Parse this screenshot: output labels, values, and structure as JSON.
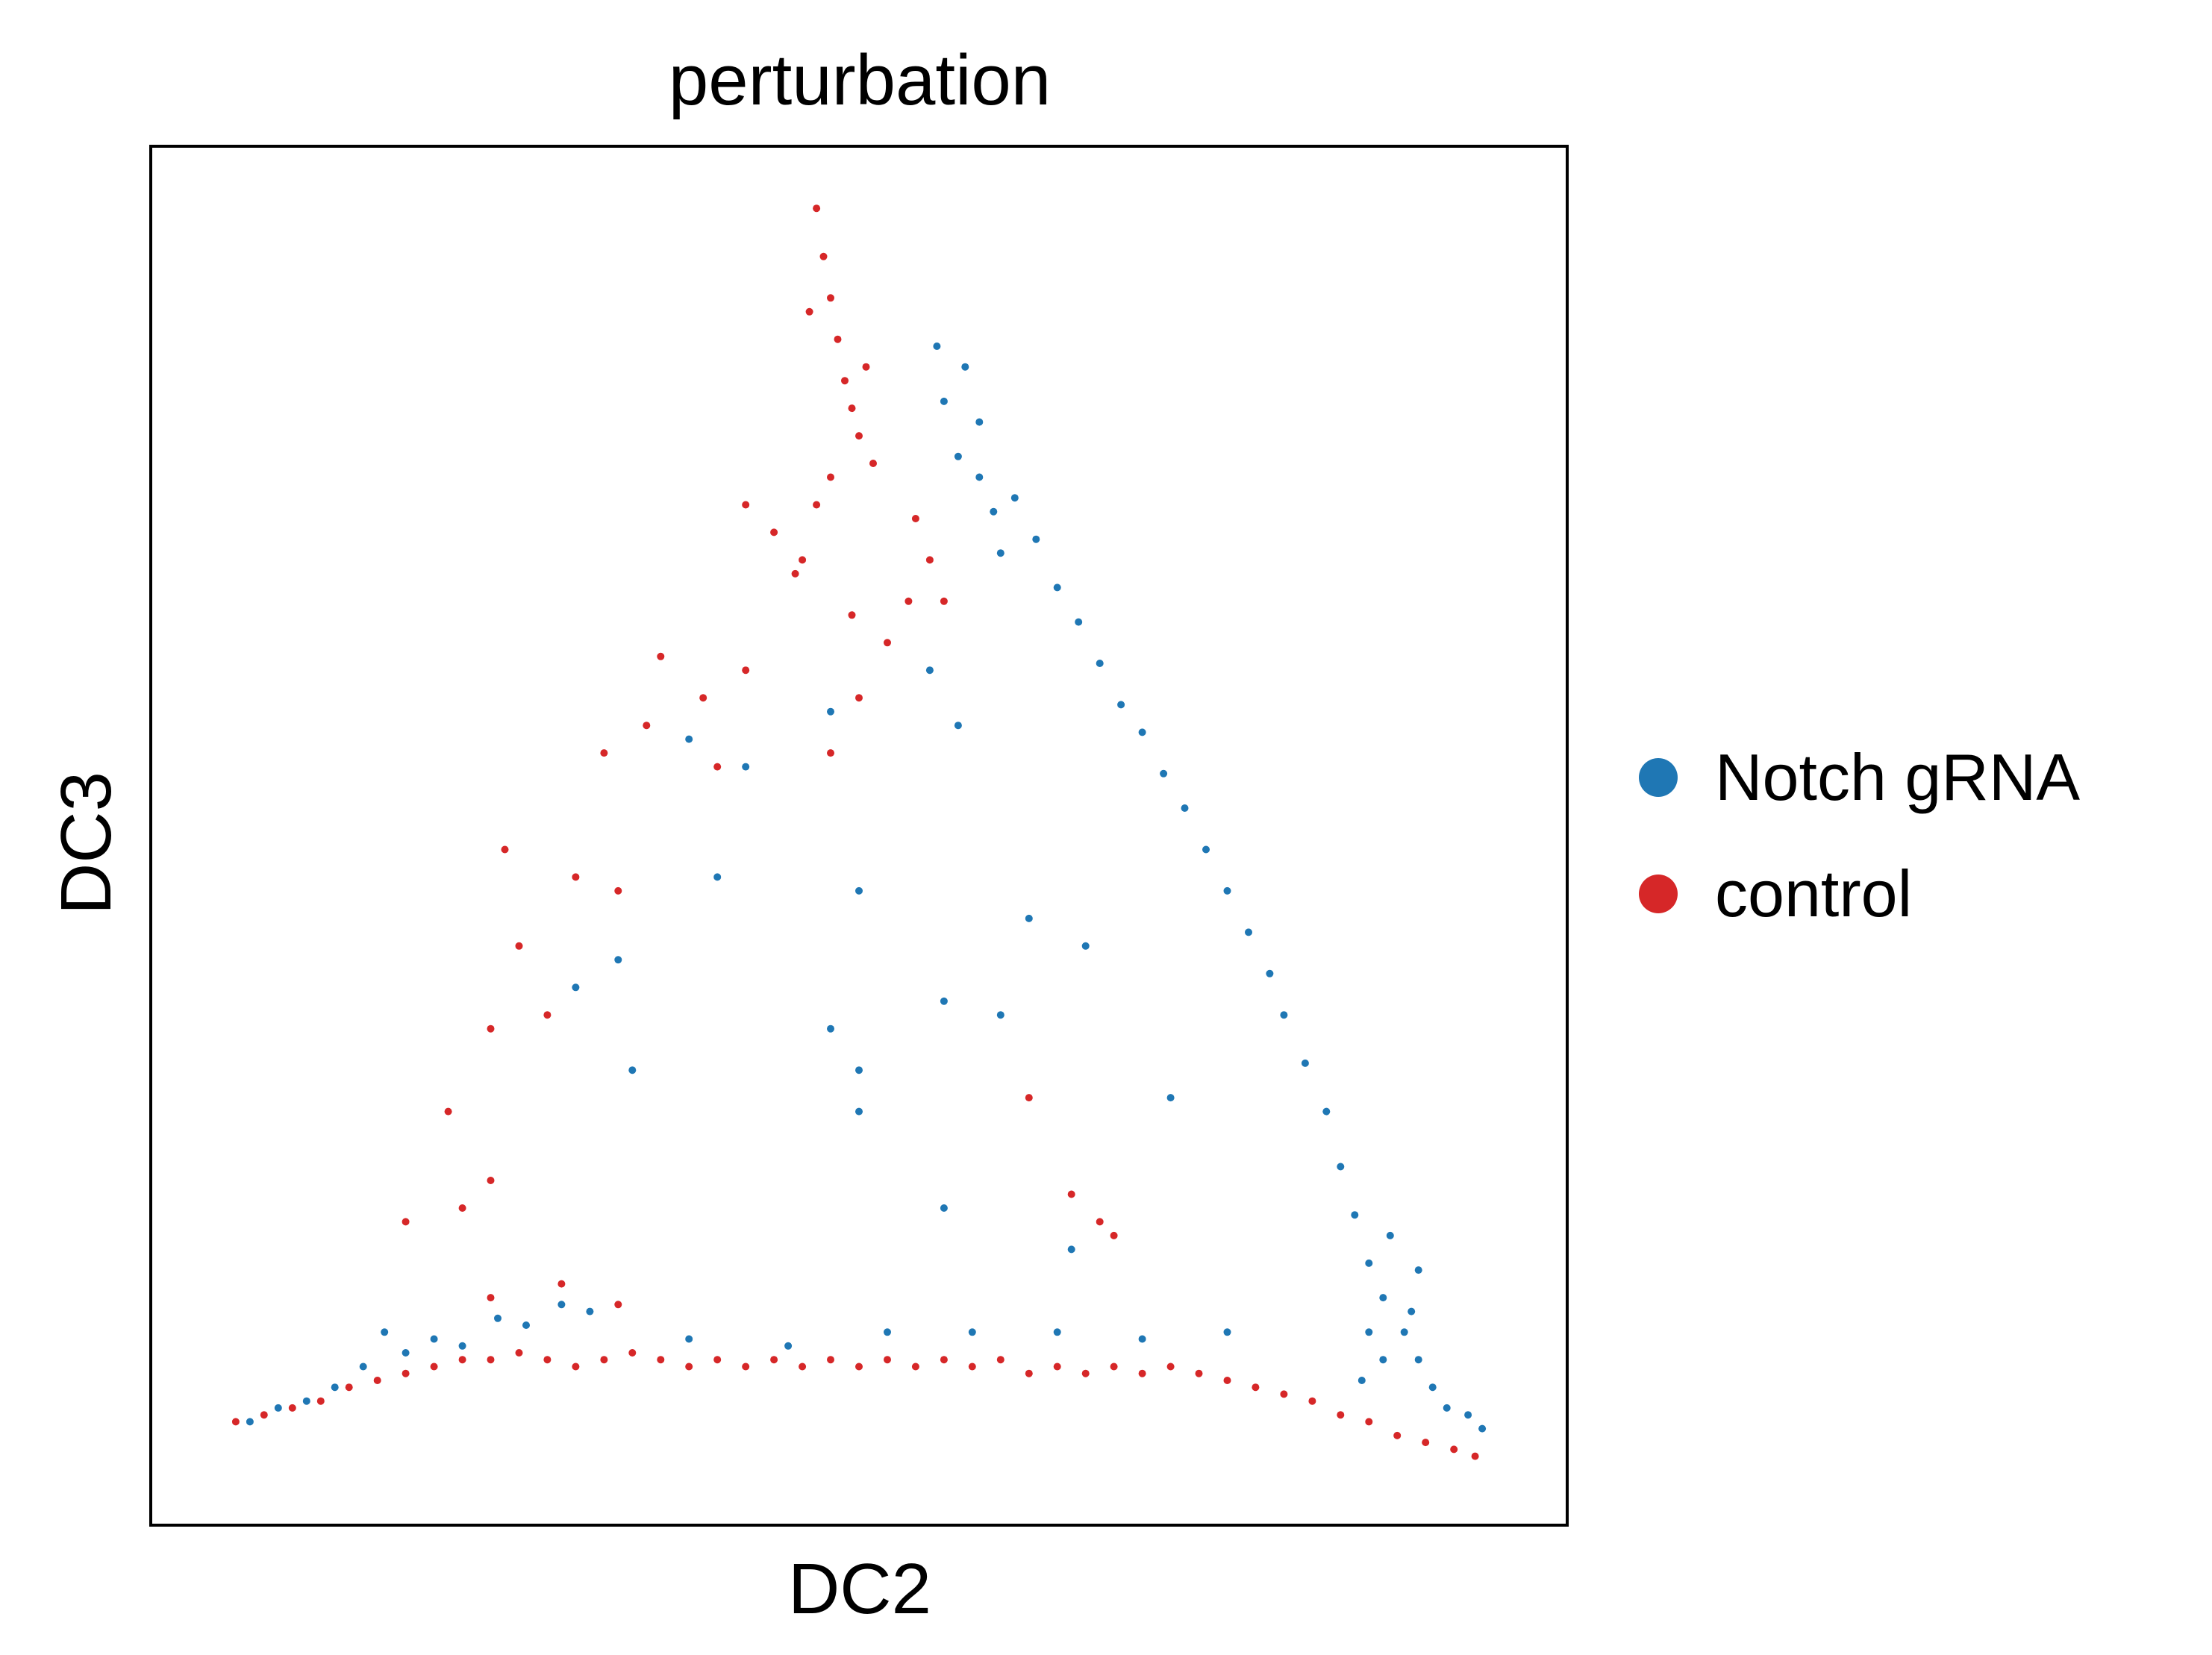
{
  "chart_data": {
    "type": "scatter",
    "title": "perturbation",
    "xlabel": "DC2",
    "ylabel": "DC3",
    "xlim": [
      0,
      1
    ],
    "ylim": [
      0,
      1
    ],
    "grid": false,
    "ticks": false,
    "legend_position": "right",
    "series": [
      {
        "name": "Notch gRNA",
        "color": "#1f77b4",
        "values": [
          {
            "x": 0.555,
            "y": 0.855
          },
          {
            "x": 0.56,
            "y": 0.815
          },
          {
            "x": 0.575,
            "y": 0.84
          },
          {
            "x": 0.585,
            "y": 0.8
          },
          {
            "x": 0.57,
            "y": 0.775
          },
          {
            "x": 0.585,
            "y": 0.76
          },
          {
            "x": 0.595,
            "y": 0.735
          },
          {
            "x": 0.6,
            "y": 0.705
          },
          {
            "x": 0.61,
            "y": 0.745
          },
          {
            "x": 0.625,
            "y": 0.715
          },
          {
            "x": 0.64,
            "y": 0.68
          },
          {
            "x": 0.655,
            "y": 0.655
          },
          {
            "x": 0.67,
            "y": 0.625
          },
          {
            "x": 0.685,
            "y": 0.595
          },
          {
            "x": 0.7,
            "y": 0.575
          },
          {
            "x": 0.715,
            "y": 0.545
          },
          {
            "x": 0.73,
            "y": 0.52
          },
          {
            "x": 0.745,
            "y": 0.49
          },
          {
            "x": 0.76,
            "y": 0.46
          },
          {
            "x": 0.775,
            "y": 0.43
          },
          {
            "x": 0.79,
            "y": 0.4
          },
          {
            "x": 0.8,
            "y": 0.37
          },
          {
            "x": 0.815,
            "y": 0.335
          },
          {
            "x": 0.83,
            "y": 0.3
          },
          {
            "x": 0.84,
            "y": 0.26
          },
          {
            "x": 0.85,
            "y": 0.225
          },
          {
            "x": 0.86,
            "y": 0.19
          },
          {
            "x": 0.87,
            "y": 0.165
          },
          {
            "x": 0.885,
            "y": 0.14
          },
          {
            "x": 0.895,
            "y": 0.12
          },
          {
            "x": 0.905,
            "y": 0.1
          },
          {
            "x": 0.915,
            "y": 0.085
          },
          {
            "x": 0.93,
            "y": 0.08
          },
          {
            "x": 0.94,
            "y": 0.07
          },
          {
            "x": 0.875,
            "y": 0.21
          },
          {
            "x": 0.895,
            "y": 0.185
          },
          {
            "x": 0.87,
            "y": 0.12
          },
          {
            "x": 0.855,
            "y": 0.105
          },
          {
            "x": 0.89,
            "y": 0.155
          },
          {
            "x": 0.86,
            "y": 0.14
          },
          {
            "x": 0.165,
            "y": 0.14
          },
          {
            "x": 0.18,
            "y": 0.125
          },
          {
            "x": 0.2,
            "y": 0.135
          },
          {
            "x": 0.22,
            "y": 0.13
          },
          {
            "x": 0.245,
            "y": 0.15
          },
          {
            "x": 0.265,
            "y": 0.145
          },
          {
            "x": 0.29,
            "y": 0.16
          },
          {
            "x": 0.31,
            "y": 0.155
          },
          {
            "x": 0.15,
            "y": 0.115
          },
          {
            "x": 0.13,
            "y": 0.1
          },
          {
            "x": 0.11,
            "y": 0.09
          },
          {
            "x": 0.09,
            "y": 0.085
          },
          {
            "x": 0.07,
            "y": 0.075
          },
          {
            "x": 0.38,
            "y": 0.135
          },
          {
            "x": 0.45,
            "y": 0.13
          },
          {
            "x": 0.52,
            "y": 0.14
          },
          {
            "x": 0.58,
            "y": 0.14
          },
          {
            "x": 0.64,
            "y": 0.14
          },
          {
            "x": 0.7,
            "y": 0.135
          },
          {
            "x": 0.76,
            "y": 0.14
          },
          {
            "x": 0.3,
            "y": 0.39
          },
          {
            "x": 0.33,
            "y": 0.41
          },
          {
            "x": 0.34,
            "y": 0.33
          },
          {
            "x": 0.4,
            "y": 0.47
          },
          {
            "x": 0.5,
            "y": 0.46
          },
          {
            "x": 0.56,
            "y": 0.38
          },
          {
            "x": 0.6,
            "y": 0.37
          },
          {
            "x": 0.5,
            "y": 0.33
          },
          {
            "x": 0.48,
            "y": 0.36
          },
          {
            "x": 0.57,
            "y": 0.58
          },
          {
            "x": 0.55,
            "y": 0.62
          },
          {
            "x": 0.48,
            "y": 0.59
          },
          {
            "x": 0.42,
            "y": 0.55
          },
          {
            "x": 0.38,
            "y": 0.57
          },
          {
            "x": 0.5,
            "y": 0.3
          },
          {
            "x": 0.56,
            "y": 0.23
          },
          {
            "x": 0.72,
            "y": 0.31
          },
          {
            "x": 0.65,
            "y": 0.2
          },
          {
            "x": 0.62,
            "y": 0.44
          },
          {
            "x": 0.66,
            "y": 0.42
          }
        ]
      },
      {
        "name": "control",
        "color": "#d62728",
        "values": [
          {
            "x": 0.47,
            "y": 0.955
          },
          {
            "x": 0.475,
            "y": 0.92
          },
          {
            "x": 0.48,
            "y": 0.89
          },
          {
            "x": 0.485,
            "y": 0.86
          },
          {
            "x": 0.49,
            "y": 0.83
          },
          {
            "x": 0.495,
            "y": 0.81
          },
          {
            "x": 0.5,
            "y": 0.79
          },
          {
            "x": 0.465,
            "y": 0.88
          },
          {
            "x": 0.505,
            "y": 0.84
          },
          {
            "x": 0.51,
            "y": 0.77
          },
          {
            "x": 0.48,
            "y": 0.76
          },
          {
            "x": 0.47,
            "y": 0.74
          },
          {
            "x": 0.455,
            "y": 0.69
          },
          {
            "x": 0.44,
            "y": 0.72
          },
          {
            "x": 0.42,
            "y": 0.74
          },
          {
            "x": 0.54,
            "y": 0.73
          },
          {
            "x": 0.55,
            "y": 0.7
          },
          {
            "x": 0.56,
            "y": 0.67
          },
          {
            "x": 0.535,
            "y": 0.67
          },
          {
            "x": 0.52,
            "y": 0.64
          },
          {
            "x": 0.495,
            "y": 0.66
          },
          {
            "x": 0.46,
            "y": 0.7
          },
          {
            "x": 0.42,
            "y": 0.62
          },
          {
            "x": 0.39,
            "y": 0.6
          },
          {
            "x": 0.36,
            "y": 0.63
          },
          {
            "x": 0.35,
            "y": 0.58
          },
          {
            "x": 0.5,
            "y": 0.6
          },
          {
            "x": 0.48,
            "y": 0.56
          },
          {
            "x": 0.4,
            "y": 0.55
          },
          {
            "x": 0.32,
            "y": 0.56
          },
          {
            "x": 0.3,
            "y": 0.47
          },
          {
            "x": 0.33,
            "y": 0.46
          },
          {
            "x": 0.25,
            "y": 0.49
          },
          {
            "x": 0.26,
            "y": 0.42
          },
          {
            "x": 0.24,
            "y": 0.36
          },
          {
            "x": 0.28,
            "y": 0.37
          },
          {
            "x": 0.21,
            "y": 0.3
          },
          {
            "x": 0.24,
            "y": 0.25
          },
          {
            "x": 0.22,
            "y": 0.23
          },
          {
            "x": 0.18,
            "y": 0.22
          },
          {
            "x": 0.65,
            "y": 0.24
          },
          {
            "x": 0.67,
            "y": 0.22
          },
          {
            "x": 0.68,
            "y": 0.21
          },
          {
            "x": 0.62,
            "y": 0.31
          },
          {
            "x": 0.06,
            "y": 0.075
          },
          {
            "x": 0.08,
            "y": 0.08
          },
          {
            "x": 0.1,
            "y": 0.085
          },
          {
            "x": 0.12,
            "y": 0.09
          },
          {
            "x": 0.14,
            "y": 0.1
          },
          {
            "x": 0.16,
            "y": 0.105
          },
          {
            "x": 0.18,
            "y": 0.11
          },
          {
            "x": 0.2,
            "y": 0.115
          },
          {
            "x": 0.22,
            "y": 0.12
          },
          {
            "x": 0.24,
            "y": 0.12
          },
          {
            "x": 0.26,
            "y": 0.125
          },
          {
            "x": 0.28,
            "y": 0.12
          },
          {
            "x": 0.3,
            "y": 0.115
          },
          {
            "x": 0.32,
            "y": 0.12
          },
          {
            "x": 0.34,
            "y": 0.125
          },
          {
            "x": 0.36,
            "y": 0.12
          },
          {
            "x": 0.38,
            "y": 0.115
          },
          {
            "x": 0.4,
            "y": 0.12
          },
          {
            "x": 0.42,
            "y": 0.115
          },
          {
            "x": 0.44,
            "y": 0.12
          },
          {
            "x": 0.46,
            "y": 0.115
          },
          {
            "x": 0.48,
            "y": 0.12
          },
          {
            "x": 0.5,
            "y": 0.115
          },
          {
            "x": 0.52,
            "y": 0.12
          },
          {
            "x": 0.54,
            "y": 0.115
          },
          {
            "x": 0.56,
            "y": 0.12
          },
          {
            "x": 0.58,
            "y": 0.115
          },
          {
            "x": 0.6,
            "y": 0.12
          },
          {
            "x": 0.62,
            "y": 0.11
          },
          {
            "x": 0.64,
            "y": 0.115
          },
          {
            "x": 0.66,
            "y": 0.11
          },
          {
            "x": 0.68,
            "y": 0.115
          },
          {
            "x": 0.7,
            "y": 0.11
          },
          {
            "x": 0.72,
            "y": 0.115
          },
          {
            "x": 0.74,
            "y": 0.11
          },
          {
            "x": 0.76,
            "y": 0.105
          },
          {
            "x": 0.78,
            "y": 0.1
          },
          {
            "x": 0.8,
            "y": 0.095
          },
          {
            "x": 0.82,
            "y": 0.09
          },
          {
            "x": 0.84,
            "y": 0.08
          },
          {
            "x": 0.86,
            "y": 0.075
          },
          {
            "x": 0.88,
            "y": 0.065
          },
          {
            "x": 0.9,
            "y": 0.06
          },
          {
            "x": 0.92,
            "y": 0.055
          },
          {
            "x": 0.935,
            "y": 0.05
          },
          {
            "x": 0.29,
            "y": 0.175
          },
          {
            "x": 0.33,
            "y": 0.16
          },
          {
            "x": 0.24,
            "y": 0.165
          }
        ]
      }
    ]
  }
}
